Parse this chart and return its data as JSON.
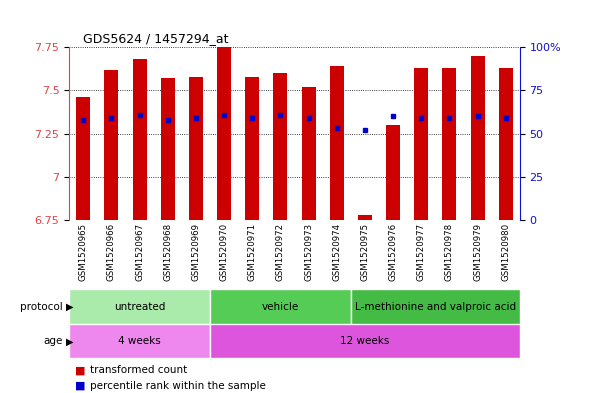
{
  "title": "GDS5624 / 1457294_at",
  "samples": [
    "GSM1520965",
    "GSM1520966",
    "GSM1520967",
    "GSM1520968",
    "GSM1520969",
    "GSM1520970",
    "GSM1520971",
    "GSM1520972",
    "GSM1520973",
    "GSM1520974",
    "GSM1520975",
    "GSM1520976",
    "GSM1520977",
    "GSM1520978",
    "GSM1520979",
    "GSM1520980"
  ],
  "bar_tops": [
    7.46,
    7.62,
    7.68,
    7.57,
    7.58,
    7.75,
    7.58,
    7.6,
    7.52,
    7.64,
    6.78,
    7.3,
    7.63,
    7.63,
    7.7,
    7.63
  ],
  "bar_base": 6.75,
  "blue_dot_y": [
    7.33,
    7.34,
    7.36,
    7.33,
    7.34,
    7.36,
    7.34,
    7.36,
    7.34,
    7.28,
    7.27,
    7.35,
    7.34,
    7.34,
    7.35,
    7.34
  ],
  "ylim": [
    6.75,
    7.75
  ],
  "yticks_left": [
    6.75,
    7.0,
    7.25,
    7.5,
    7.75
  ],
  "ytick_labels_left": [
    "6.75",
    "7",
    "7.25",
    "7.5",
    "7.75"
  ],
  "yticks_right_vals": [
    0,
    25,
    50,
    75,
    100
  ],
  "ytick_labels_right": [
    "0",
    "25",
    "50",
    "75",
    "100%"
  ],
  "bar_color": "#cc0000",
  "blue_color": "#0000cc",
  "protocol_groups": [
    {
      "label": "untreated",
      "start": 0,
      "end": 4,
      "color": "#aaeaaa"
    },
    {
      "label": "vehicle",
      "start": 5,
      "end": 9,
      "color": "#55cc55"
    },
    {
      "label": "L-methionine and valproic acid",
      "start": 10,
      "end": 15,
      "color": "#44bb44"
    }
  ],
  "age_groups": [
    {
      "label": "4 weeks",
      "start": 0,
      "end": 4,
      "color": "#ee88ee"
    },
    {
      "label": "12 weeks",
      "start": 5,
      "end": 15,
      "color": "#dd55dd"
    }
  ],
  "left_tick_color": "#dd4444",
  "right_tick_color": "#1111cc",
  "bar_width": 0.5,
  "sample_bg_color": "#cccccc",
  "spine_color": "#888888"
}
